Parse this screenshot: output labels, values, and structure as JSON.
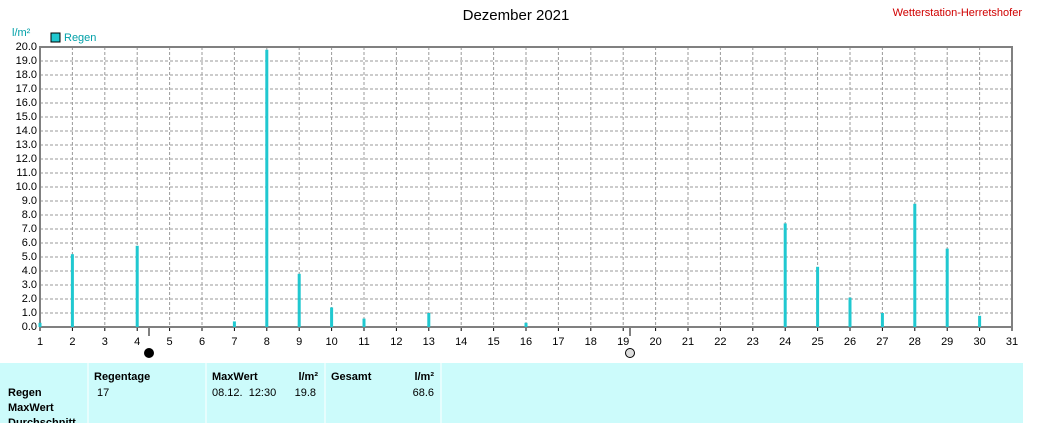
{
  "chart_data": {
    "type": "bar",
    "title": "Dezember 2021",
    "station": "Wetterstation-Herretshofer",
    "y_label": "l/m²",
    "series": [
      {
        "name": "Regen",
        "color": "#20c8d0",
        "x": [
          1,
          2,
          4,
          7,
          8,
          9,
          10,
          11,
          13,
          16,
          24,
          25,
          26,
          27,
          28,
          29,
          30
        ],
        "values": [
          0.3,
          5.2,
          5.8,
          0.4,
          19.8,
          3.8,
          1.4,
          0.6,
          1.0,
          0.3,
          7.4,
          4.3,
          2.1,
          1.0,
          8.8,
          5.6,
          0.8
        ]
      }
    ],
    "xlim": [
      1,
      31
    ],
    "xticks": [
      1,
      2,
      3,
      4,
      5,
      6,
      7,
      8,
      9,
      10,
      11,
      12,
      13,
      14,
      15,
      16,
      17,
      18,
      19,
      20,
      21,
      22,
      23,
      24,
      25,
      26,
      27,
      28,
      29,
      30,
      31
    ],
    "ylim": [
      0,
      20
    ],
    "yticks": [
      {
        "value": 0,
        "label": "0.0"
      },
      {
        "value": 1,
        "label": "1.0"
      },
      {
        "value": 2,
        "label": "2.0"
      },
      {
        "value": 3,
        "label": "3.0"
      },
      {
        "value": 4,
        "label": "4.0"
      },
      {
        "value": 5,
        "label": "5.0"
      },
      {
        "value": 6,
        "label": "6.0"
      },
      {
        "value": 7,
        "label": "7.0"
      },
      {
        "value": 8,
        "label": "8.0"
      },
      {
        "value": 9,
        "label": "9.0"
      },
      {
        "value": 10,
        "label": "10.0"
      },
      {
        "value": 11,
        "label": "11.0"
      },
      {
        "value": 12,
        "label": "12.0"
      },
      {
        "value": 13,
        "label": "13.0"
      },
      {
        "value": 14,
        "label": "14.0"
      },
      {
        "value": 15,
        "label": "15.0"
      },
      {
        "value": 16,
        "label": "16.0"
      },
      {
        "value": 17,
        "label": "17.0"
      },
      {
        "value": 18,
        "label": "18.0"
      },
      {
        "value": 19,
        "label": "19.0"
      },
      {
        "value": 20,
        "label": "20.0"
      }
    ],
    "grid": true
  },
  "table": {
    "row_labels": [
      "Regen",
      "MaxWert",
      "Durchschnitt"
    ],
    "headers": [
      "Regentage",
      "MaxWert",
      "l/m²",
      "Gesamt",
      "l/m²"
    ],
    "cells": [
      "17",
      "08.12.  12:30",
      "19.8",
      "68.6"
    ]
  }
}
